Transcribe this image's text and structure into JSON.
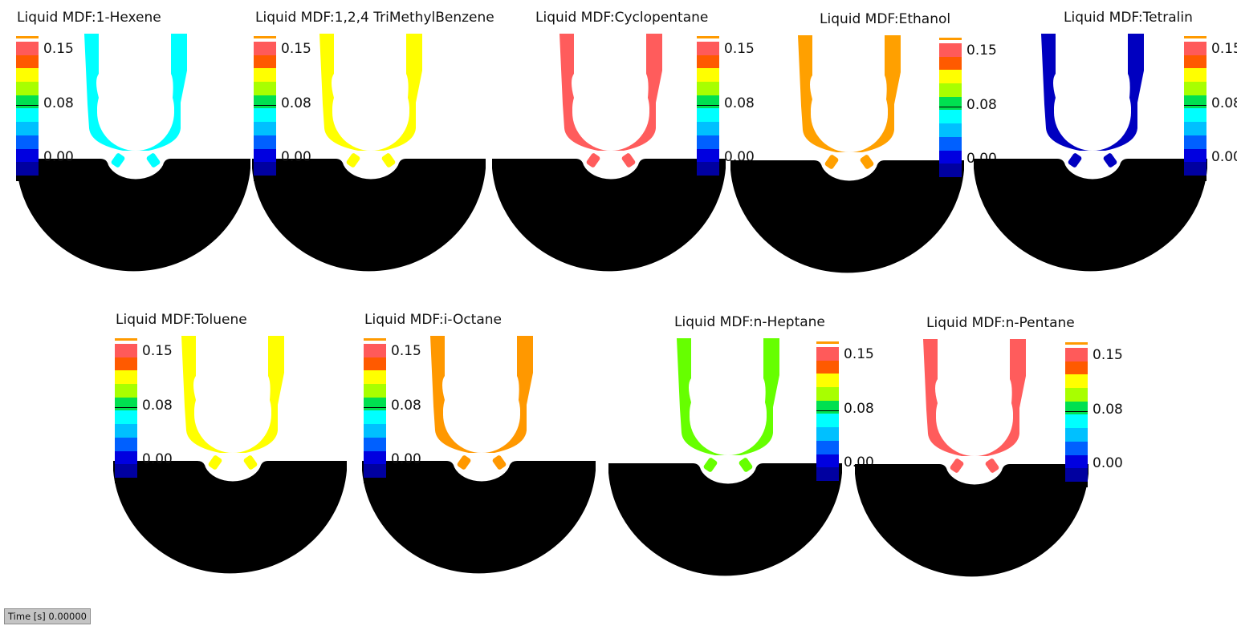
{
  "legend": {
    "ticks": [
      "0.15",
      "0.08",
      "0.00"
    ],
    "color_levels": [
      "#ff5a5a",
      "#ff5a00",
      "#ffff00",
      "#a8ff00",
      "#00e050",
      "#00ffff",
      "#00c0ff",
      "#0060ff",
      "#0000e0",
      "#0000a0",
      "#000000"
    ]
  },
  "panels": [
    {
      "title": "Liquid MDF:1-Hexene",
      "color": "#00ffff"
    },
    {
      "title": "Liquid MDF:1,2,4 TriMethylBenzene",
      "color": "#ffff00"
    },
    {
      "title": "Liquid MDF:Cyclopentane",
      "color": "#ff5c5c"
    },
    {
      "title": "Liquid MDF:Ethanol",
      "color": "#ffa000"
    },
    {
      "title": "Liquid MDF:Tetralin",
      "color": "#0000c0"
    },
    {
      "title": "Liquid MDF:Toluene",
      "color": "#ffff00"
    },
    {
      "title": "Liquid MDF:i-Octane",
      "color": "#ff9800"
    },
    {
      "title": "Liquid MDF:n-Heptane",
      "color": "#66ff00"
    },
    {
      "title": "Liquid MDF:n-Pentane",
      "color": "#ff5c5c"
    }
  ],
  "time_label": "Time [s] 0.00000"
}
